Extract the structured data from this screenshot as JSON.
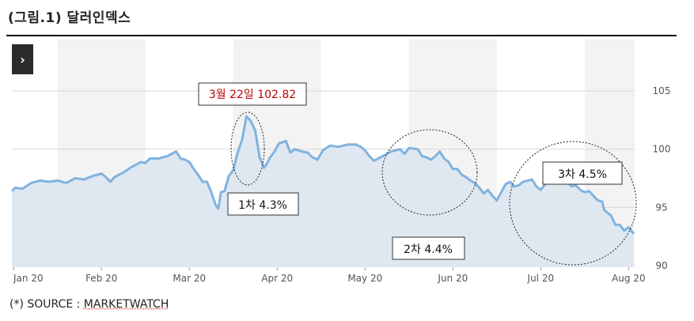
{
  "figure": {
    "title": "(그림.1) 달러인덱스",
    "source_prefix": "(*) SOURCE : ",
    "source_value": "MARKETWATCH"
  },
  "nav": {
    "next_icon": "chevron-right-icon",
    "glyph": "›"
  },
  "colors": {
    "line": "#7fb3e0",
    "fill": "#dfe8f1",
    "band": "#f3f3f3",
    "grid": "#d8d8d8",
    "peak_text": "#c00000",
    "axis_text": "#555555"
  },
  "chart_data": {
    "type": "area",
    "title": "",
    "xlabel": "",
    "ylabel": "",
    "ylim": [
      90,
      105
    ],
    "yticks": [
      90,
      95,
      100,
      105
    ],
    "xticks": [
      {
        "label": "Jan 20",
        "x": 0
      },
      {
        "label": "Feb 20",
        "x": 1
      },
      {
        "label": "Mar 20",
        "x": 2
      },
      {
        "label": "Apr 20",
        "x": 3
      },
      {
        "label": "May 20",
        "x": 4
      },
      {
        "label": "Jun 20",
        "x": 5
      },
      {
        "label": "Jul 20",
        "x": 6
      },
      {
        "label": "Aug 20",
        "x": 7
      }
    ],
    "x_range": [
      -0.02,
      7.06
    ],
    "grid": true,
    "series": [
      {
        "values": [
          [
            -0.02,
            96.4
          ],
          [
            0.02,
            96.7
          ],
          [
            0.1,
            96.6
          ],
          [
            0.2,
            97.1
          ],
          [
            0.3,
            97.3
          ],
          [
            0.4,
            97.2
          ],
          [
            0.5,
            97.3
          ],
          [
            0.6,
            97.1
          ],
          [
            0.7,
            97.5
          ],
          [
            0.8,
            97.4
          ],
          [
            0.9,
            97.7
          ],
          [
            1.0,
            97.9
          ],
          [
            1.05,
            97.6
          ],
          [
            1.1,
            97.2
          ],
          [
            1.15,
            97.6
          ],
          [
            1.25,
            98.0
          ],
          [
            1.35,
            98.5
          ],
          [
            1.45,
            98.9
          ],
          [
            1.5,
            98.8
          ],
          [
            1.55,
            99.2
          ],
          [
            1.65,
            99.2
          ],
          [
            1.75,
            99.4
          ],
          [
            1.85,
            99.8
          ],
          [
            1.9,
            99.2
          ],
          [
            1.95,
            99.1
          ],
          [
            2.0,
            98.9
          ],
          [
            2.05,
            98.3
          ],
          [
            2.1,
            97.8
          ],
          [
            2.15,
            97.2
          ],
          [
            2.2,
            97.2
          ],
          [
            2.25,
            96.3
          ],
          [
            2.3,
            95.2
          ],
          [
            2.33,
            94.9
          ],
          [
            2.36,
            96.3
          ],
          [
            2.4,
            96.4
          ],
          [
            2.45,
            97.7
          ],
          [
            2.5,
            98.2
          ],
          [
            2.55,
            99.7
          ],
          [
            2.6,
            100.8
          ],
          [
            2.65,
            102.82
          ],
          [
            2.7,
            102.4
          ],
          [
            2.75,
            101.6
          ],
          [
            2.8,
            99.3
          ],
          [
            2.85,
            98.4
          ],
          [
            2.88,
            98.7
          ],
          [
            2.92,
            99.3
          ],
          [
            2.97,
            99.8
          ],
          [
            3.02,
            100.5
          ],
          [
            3.1,
            100.7
          ],
          [
            3.15,
            99.7
          ],
          [
            3.2,
            100.0
          ],
          [
            3.28,
            99.8
          ],
          [
            3.35,
            99.7
          ],
          [
            3.4,
            99.3
          ],
          [
            3.46,
            99.1
          ],
          [
            3.52,
            99.9
          ],
          [
            3.6,
            100.3
          ],
          [
            3.7,
            100.2
          ],
          [
            3.8,
            100.4
          ],
          [
            3.9,
            100.4
          ],
          [
            3.95,
            100.2
          ],
          [
            4.0,
            99.9
          ],
          [
            4.05,
            99.4
          ],
          [
            4.1,
            99.0
          ],
          [
            4.2,
            99.4
          ],
          [
            4.3,
            99.8
          ],
          [
            4.4,
            100.0
          ],
          [
            4.45,
            99.6
          ],
          [
            4.5,
            100.1
          ],
          [
            4.6,
            100.0
          ],
          [
            4.65,
            99.4
          ],
          [
            4.7,
            99.3
          ],
          [
            4.75,
            99.1
          ],
          [
            4.8,
            99.4
          ],
          [
            4.85,
            99.8
          ],
          [
            4.9,
            99.2
          ],
          [
            4.95,
            98.9
          ],
          [
            5.0,
            98.3
          ],
          [
            5.05,
            98.3
          ],
          [
            5.1,
            97.8
          ],
          [
            5.15,
            97.6
          ],
          [
            5.2,
            97.3
          ],
          [
            5.25,
            97.1
          ],
          [
            5.3,
            96.7
          ],
          [
            5.35,
            96.2
          ],
          [
            5.4,
            96.5
          ],
          [
            5.45,
            96.0
          ],
          [
            5.5,
            95.6
          ],
          [
            5.55,
            96.3
          ],
          [
            5.6,
            97.0
          ],
          [
            5.65,
            97.2
          ],
          [
            5.7,
            96.8
          ],
          [
            5.75,
            96.9
          ],
          [
            5.8,
            97.2
          ],
          [
            5.9,
            97.4
          ],
          [
            5.95,
            96.8
          ],
          [
            6.0,
            96.5
          ],
          [
            6.05,
            97.0
          ],
          [
            6.1,
            97.4
          ],
          [
            6.15,
            97.4
          ],
          [
            6.2,
            97.2
          ],
          [
            6.3,
            97.2
          ],
          [
            6.35,
            96.8
          ],
          [
            6.4,
            96.9
          ],
          [
            6.45,
            96.5
          ],
          [
            6.5,
            96.3
          ],
          [
            6.55,
            96.4
          ],
          [
            6.6,
            96.0
          ],
          [
            6.65,
            95.6
          ],
          [
            6.7,
            95.5
          ],
          [
            6.72,
            94.8
          ],
          [
            6.75,
            94.6
          ],
          [
            6.8,
            94.3
          ],
          [
            6.85,
            93.5
          ],
          [
            6.9,
            93.5
          ],
          [
            6.95,
            93.0
          ],
          [
            7.0,
            93.3
          ],
          [
            7.05,
            92.8
          ],
          [
            7.06,
            92.9
          ]
        ]
      }
    ],
    "annotations": [
      {
        "text": "3월 22일 102.82",
        "kind": "peak-label"
      },
      {
        "text": "1차 4.3%",
        "kind": "drop-label"
      },
      {
        "text": "2차 4.4%",
        "kind": "drop-label"
      },
      {
        "text": "3차 4.5%",
        "kind": "drop-label"
      }
    ]
  }
}
